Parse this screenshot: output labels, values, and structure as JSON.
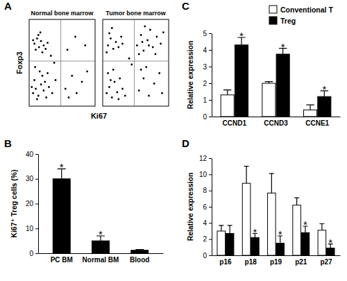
{
  "chart_data": [
    {
      "type": "scatter",
      "panel": "A",
      "x_label": "Ki67",
      "y_label": "Foxp3",
      "xlim": [
        0,
        100
      ],
      "ylim": [
        0,
        100
      ],
      "tick_labels": false,
      "gate_x": 48,
      "gate_y": 52,
      "color": "#000000",
      "plots": [
        {
          "title": "Normal bone marrow",
          "x": [
            8,
            12,
            15,
            18,
            10,
            22,
            14,
            25,
            6,
            20,
            17,
            28,
            6,
            10,
            14,
            18,
            22,
            26,
            8,
            12,
            20,
            30,
            16,
            24,
            4,
            28,
            35,
            9,
            55,
            65,
            72,
            80,
            60,
            88,
            58,
            70,
            85,
            38,
            40,
            33
          ],
          "values": [
            72,
            78,
            68,
            75,
            65,
            70,
            82,
            66,
            76,
            62,
            85,
            73,
            15,
            20,
            12,
            25,
            18,
            10,
            30,
            8,
            35,
            22,
            40,
            28,
            22,
            38,
            15,
            45,
            20,
            35,
            15,
            28,
            10,
            40,
            65,
            80,
            70,
            50,
            30,
            58
          ]
        },
        {
          "title": "Tumor bone marrow",
          "x": [
            8,
            12,
            16,
            20,
            10,
            24,
            6,
            28,
            14,
            30,
            52,
            58,
            62,
            68,
            72,
            76,
            82,
            88,
            64,
            55,
            80,
            92,
            70,
            60,
            6,
            10,
            14,
            18,
            22,
            26,
            8,
            30,
            16,
            34,
            12,
            24,
            55,
            62,
            70,
            78,
            86,
            66,
            90,
            58,
            40,
            44
          ],
          "values": [
            70,
            78,
            66,
            74,
            84,
            68,
            62,
            80,
            90,
            72,
            70,
            82,
            64,
            76,
            88,
            68,
            80,
            72,
            92,
            60,
            60,
            85,
            70,
            74,
            15,
            22,
            10,
            28,
            16,
            32,
            38,
            20,
            42,
            12,
            30,
            8,
            18,
            32,
            12,
            26,
            38,
            45,
            15,
            42,
            55,
            48
          ]
        }
      ]
    },
    {
      "type": "bar",
      "panel": "B",
      "y_label": "Ki67⁺ Treg cells (%)",
      "categories": [
        "PC BM",
        "Normal BM",
        "Blood"
      ],
      "values": [
        30,
        5,
        1.2
      ],
      "errors": [
        4,
        2,
        0.3
      ],
      "significance": [
        "*",
        "*",
        null
      ],
      "color": "#000000",
      "ylim": [
        0,
        40
      ],
      "yticks": [
        0,
        10,
        20,
        30,
        40
      ]
    },
    {
      "type": "bar",
      "panel": "C",
      "y_label": "Relative expression",
      "categories": [
        "CCND1",
        "CCND3",
        "CCNE1"
      ],
      "series": [
        {
          "name": "Conventional T",
          "color": "#ffffff",
          "values": [
            1.3,
            2.0,
            0.4
          ],
          "errors": [
            0.3,
            0.1,
            0.3
          ]
        },
        {
          "name": "Treg",
          "color": "#000000",
          "values": [
            4.3,
            3.75,
            1.2
          ],
          "errors": [
            0.45,
            0.35,
            0.35
          ],
          "significance": [
            "*",
            "*",
            "*"
          ]
        }
      ],
      "ylim": [
        0,
        5
      ],
      "yticks": [
        0,
        1,
        2,
        3,
        4,
        5
      ],
      "legend": "top-right"
    },
    {
      "type": "bar",
      "panel": "D",
      "y_label": "Relative expression",
      "categories": [
        "p16",
        "p18",
        "p19",
        "p21",
        "p27"
      ],
      "series": [
        {
          "color": "#ffffff",
          "values": [
            3.0,
            8.9,
            7.7,
            6.2,
            3.1
          ],
          "errors": [
            0.7,
            2.1,
            2.4,
            0.9,
            0.8
          ]
        },
        {
          "color": "#000000",
          "values": [
            2.7,
            2.2,
            1.5,
            2.8,
            0.9
          ],
          "errors": [
            1.0,
            0.5,
            0.9,
            0.8,
            0.5
          ],
          "significance": [
            null,
            "*",
            "*",
            "*",
            "*"
          ]
        }
      ],
      "ylim": [
        0,
        12
      ],
      "yticks": [
        0,
        2,
        4,
        6,
        8,
        10,
        12
      ]
    }
  ]
}
